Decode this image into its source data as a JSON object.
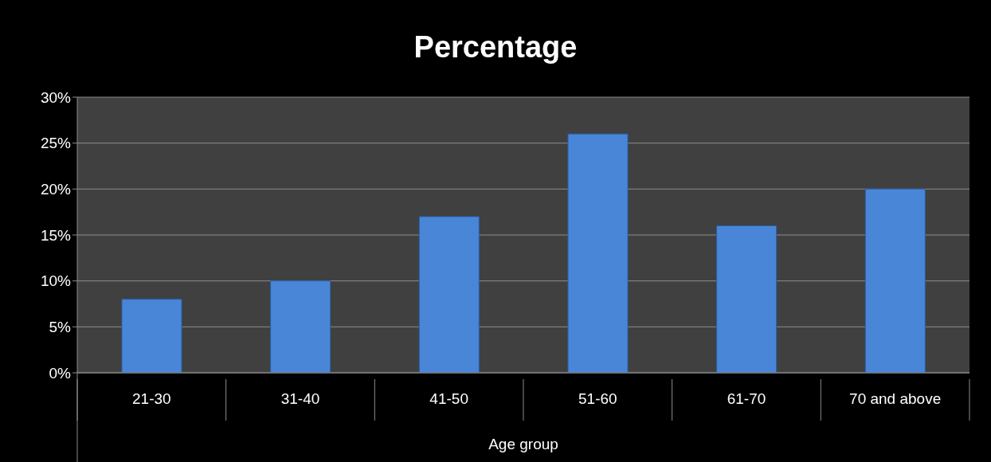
{
  "chart_data": {
    "type": "bar",
    "title": "Percentage",
    "xlabel": "Age group",
    "categories": [
      "21-30",
      "31-40",
      "41-50",
      "51-60",
      "61-70",
      "70 and above"
    ],
    "values": [
      8,
      10,
      17,
      26,
      16,
      20
    ],
    "color": "#4a86d8",
    "ylim": [
      0,
      30
    ],
    "yticks": [
      {
        "value": 0,
        "label": "0%"
      },
      {
        "value": 5,
        "label": "5%"
      },
      {
        "value": 10,
        "label": "10%"
      },
      {
        "value": 15,
        "label": "15%"
      },
      {
        "value": 20,
        "label": "20%"
      },
      {
        "value": 25,
        "label": "25%"
      },
      {
        "value": 30,
        "label": "30%"
      }
    ],
    "grid": "y",
    "legend": false
  }
}
